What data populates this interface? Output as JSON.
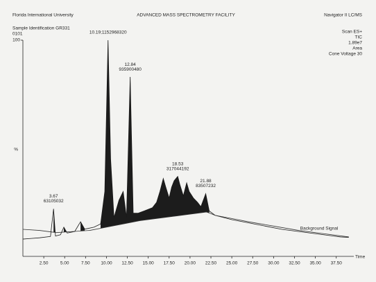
{
  "chart_data": {
    "type": "line",
    "header": {
      "institution": "Florida International University",
      "title": "ADVANCED MASS SPECTROMETRY FACILITY",
      "instrument": "Navigator II LC/MS",
      "sample": "Sample Identification GR331",
      "sample_code": "0101",
      "scan_info": [
        "Scan ES+",
        "TIC",
        "1.89e7",
        "Area",
        "Cone Voltage 30"
      ]
    },
    "ylabel": "%",
    "xlabel": "Time",
    "xlim": [
      0,
      39.6
    ],
    "ylim": [
      0,
      100
    ],
    "yticks": [
      100
    ],
    "xticks": [
      {
        "value": 2.5,
        "label": "2.50"
      },
      {
        "value": 5,
        "label": "5.00"
      },
      {
        "value": 7.5,
        "label": "7.50"
      },
      {
        "value": 10,
        "label": "10.00"
      },
      {
        "value": 12.5,
        "label": "12.50"
      },
      {
        "value": 15,
        "label": "15.00"
      },
      {
        "value": 17.5,
        "label": "17.50"
      },
      {
        "value": 20,
        "label": "20.00"
      },
      {
        "value": 22.5,
        "label": "22.50"
      },
      {
        "value": 25,
        "label": "25.00"
      },
      {
        "value": 27.5,
        "label": "27.50"
      },
      {
        "value": 30,
        "label": "30.00"
      },
      {
        "value": 32.5,
        "label": "32.50"
      },
      {
        "value": 35,
        "label": "35.00"
      },
      {
        "value": 37.5,
        "label": "37.50"
      }
    ],
    "series": [
      {
        "color": "#1a1a1a",
        "x": [
          0,
          1,
          2,
          3.3,
          3.67,
          3.9,
          4.5,
          4.9,
          5.3,
          6.2,
          6.9,
          7.4,
          8.5,
          9.3,
          9.8,
          10.19,
          10.5,
          10.9,
          11.5,
          12.0,
          12.4,
          12.84,
          13.2,
          13.8,
          14.5,
          15.5,
          16.0,
          16.4,
          16.8,
          17.1,
          17.5,
          17.8,
          18.1,
          18.53,
          18.8,
          19.2,
          19.6,
          19.9,
          20.4,
          20.9,
          21.3,
          21.88,
          22.3,
          23.0,
          24,
          25,
          27,
          29,
          31,
          33,
          35,
          37,
          38,
          39
        ],
        "values": [
          8,
          8.3,
          8.6,
          9.2,
          22,
          9.4,
          10,
          13.5,
          10.8,
          11.5,
          16,
          12.6,
          13.5,
          15,
          30,
          100,
          45,
          18,
          26,
          30,
          18,
          83,
          20,
          20,
          21,
          22.5,
          25,
          30,
          36,
          32,
          27,
          32,
          35,
          37,
          33,
          28,
          34,
          30,
          27,
          25,
          23,
          29,
          21,
          19,
          18,
          17,
          15.5,
          14,
          12.5,
          11.5,
          10.5,
          9.5,
          9,
          8.8
        ]
      },
      {
        "name": "Background Signal",
        "color": "#333333",
        "x": [
          0,
          2,
          4,
          6,
          8,
          10,
          12,
          14,
          16,
          18,
          20,
          22,
          23,
          25,
          27,
          30,
          33,
          36,
          39
        ],
        "values": [
          12.5,
          12,
          11,
          11.5,
          12,
          13.5,
          15,
          16.5,
          17.5,
          18.5,
          19.5,
          20.5,
          19,
          17.5,
          16,
          14,
          12,
          10.5,
          9
        ]
      }
    ],
    "annotations": [
      {
        "x": 3.67,
        "y": 22,
        "lines": [
          "3.67",
          "63105032"
        ]
      },
      {
        "x": 10.19,
        "y": 100,
        "lines": [
          "10.19;1152968320"
        ]
      },
      {
        "x": 12.84,
        "y": 83,
        "lines": [
          "12.84",
          "935900480"
        ]
      },
      {
        "x": 18.53,
        "y": 37,
        "lines": [
          "18.53",
          "317044192"
        ]
      },
      {
        "x": 21.88,
        "y": 29,
        "lines": [
          "21.88",
          "83507232"
        ]
      }
    ]
  }
}
